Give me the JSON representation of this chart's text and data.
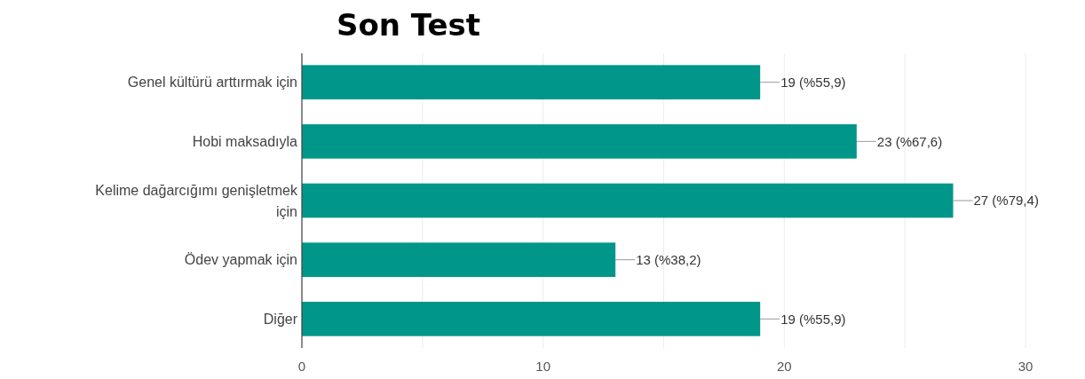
{
  "chart_data": {
    "type": "bar",
    "orientation": "horizontal",
    "title": "Son Test",
    "categories": [
      "Genel kültürü arttırmak için",
      "Hobi maksadıyla",
      "Kelime dağarcığımı genişletmek için",
      "Ödev yapmak için",
      "Diğer"
    ],
    "values": [
      19,
      23,
      27,
      13,
      19
    ],
    "value_labels": [
      "19 (%55,9)",
      "23 (%67,6)",
      "27 (%79,4)",
      "13 (%38,2)",
      "19 (%55,9)"
    ],
    "color": "#00968a",
    "xlim": [
      0,
      30
    ],
    "xticks": [
      0,
      {
        "value": 5,
        "label": null
      },
      10,
      {
        "value": 15,
        "label": null
      },
      20,
      {
        "value": 25,
        "label": null
      },
      30
    ],
    "grid": "x"
  }
}
